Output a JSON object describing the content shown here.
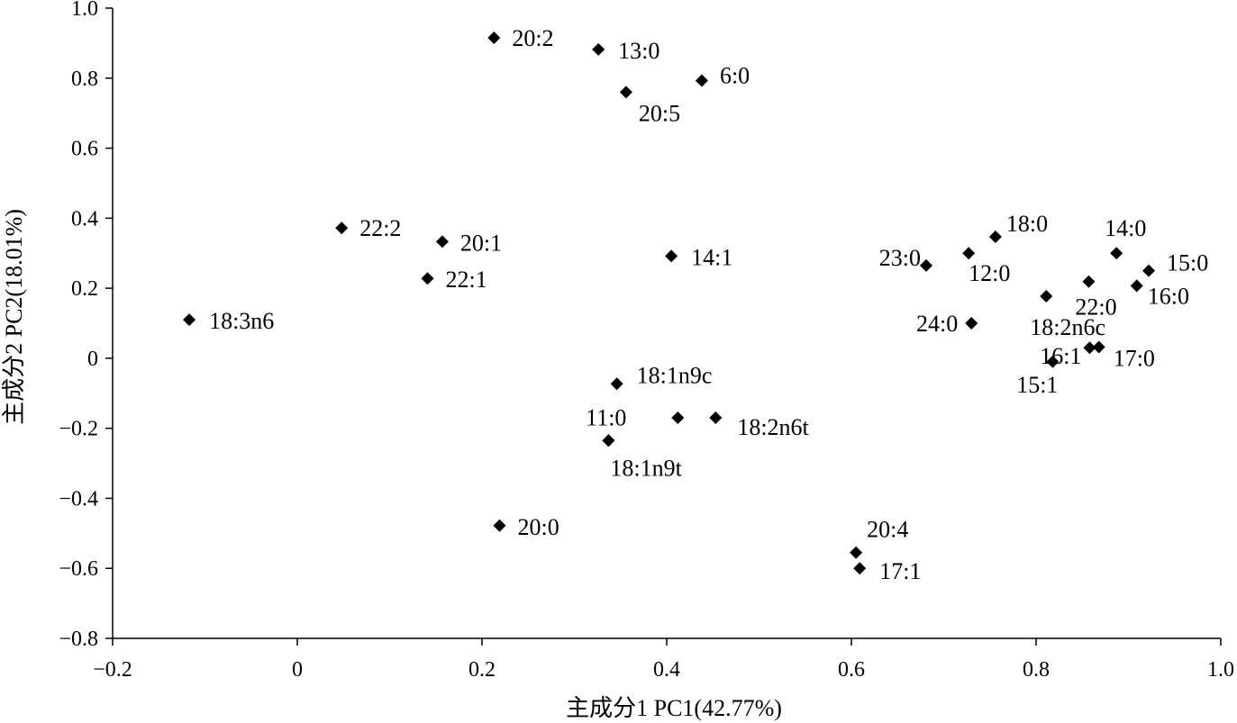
{
  "chart_data": {
    "type": "scatter",
    "title": "",
    "xlabel": "主成分1  PC1(42.77%)",
    "ylabel": "主成分2 PC2(18.01%)",
    "xlim": [
      -0.2,
      1.0
    ],
    "ylim": [
      -0.8,
      1.0
    ],
    "grid": false,
    "legend": "none",
    "marker": "diamond",
    "marker_color": "#000000",
    "x_ticks": [
      -0.2,
      0,
      0.2,
      0.4,
      0.6,
      0.8,
      1.0
    ],
    "x_tick_labels": [
      "−0.2",
      "0",
      "0.2",
      "0.4",
      "0.6",
      "0.8",
      "1.0"
    ],
    "y_ticks": [
      1.0,
      0.8,
      0.6,
      0.4,
      0.2,
      0,
      -0.2,
      -0.4,
      -0.6,
      -0.8
    ],
    "y_tick_labels": [
      "1.0",
      "0.8",
      "0.6",
      "0.4",
      "0.2",
      "0",
      "−0.2",
      "−0.4",
      "−0.6",
      "−0.8"
    ],
    "points": [
      {
        "label": "20:2",
        "x": 0.213,
        "y": 0.915
      },
      {
        "label": "13:0",
        "x": 0.326,
        "y": 0.882
      },
      {
        "label": "6:0",
        "x": 0.438,
        "y": 0.793
      },
      {
        "label": "20:5",
        "x": 0.356,
        "y": 0.76
      },
      {
        "label": "22:2",
        "x": 0.048,
        "y": 0.372
      },
      {
        "label": "20:1",
        "x": 0.157,
        "y": 0.333
      },
      {
        "label": "22:1",
        "x": 0.141,
        "y": 0.228
      },
      {
        "label": "18:3n6",
        "x": -0.117,
        "y": 0.11
      },
      {
        "label": "14:1",
        "x": 0.405,
        "y": 0.292
      },
      {
        "label": "18:1n9c",
        "x": 0.346,
        "y": -0.073
      },
      {
        "label": "11:0",
        "x": 0.337,
        "y": -0.235
      },
      {
        "label": "18:1n9t",
        "x": 0.337,
        "y": -0.235
      },
      {
        "label": "18:2n6t",
        "x": 0.453,
        "y": -0.17
      },
      {
        "label": "",
        "x": 0.412,
        "y": -0.17
      },
      {
        "label": "20:0",
        "x": 0.219,
        "y": -0.478
      },
      {
        "label": "20:4",
        "x": 0.605,
        "y": -0.555
      },
      {
        "label": "17:1",
        "x": 0.609,
        "y": -0.6
      },
      {
        "label": "23:0",
        "x": 0.681,
        "y": 0.265
      },
      {
        "label": "12:0",
        "x": 0.727,
        "y": 0.3
      },
      {
        "label": "18:0",
        "x": 0.756,
        "y": 0.347
      },
      {
        "label": "24:0",
        "x": 0.73,
        "y": 0.1
      },
      {
        "label": "18:2n6c",
        "x": 0.811,
        "y": 0.177
      },
      {
        "label": "22:0",
        "x": 0.857,
        "y": 0.219
      },
      {
        "label": "14:0",
        "x": 0.887,
        "y": 0.3
      },
      {
        "label": "15:0",
        "x": 0.922,
        "y": 0.25
      },
      {
        "label": "16:0",
        "x": 0.909,
        "y": 0.207
      },
      {
        "label": "16:1",
        "x": 0.858,
        "y": 0.03
      },
      {
        "label": "17:0",
        "x": 0.868,
        "y": 0.032
      },
      {
        "label": "15:1",
        "x": 0.818,
        "y": -0.01
      }
    ]
  }
}
